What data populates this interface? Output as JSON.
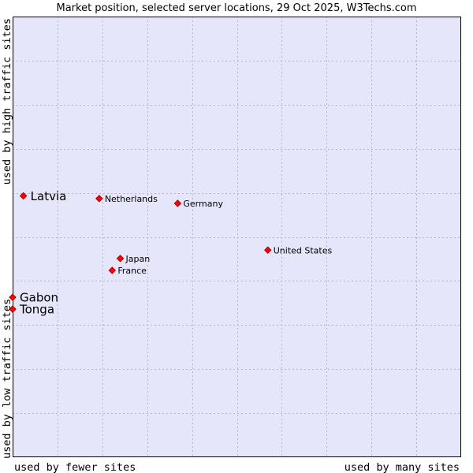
{
  "chart_data": {
    "type": "scatter",
    "title": "Market position, selected server locations, 29 Oct 2025, W3Techs.com",
    "xlabel_left": "used by fewer sites",
    "xlabel_right": "used by many sites",
    "ylabel_bottom": "used by low traffic sites",
    "ylabel_top": "used by high traffic sites",
    "xlim": [
      0,
      100
    ],
    "ylim": [
      0,
      100
    ],
    "grid": true,
    "points": [
      {
        "label": "Latvia",
        "x": 2.4,
        "y": 59.3,
        "emphasis": true
      },
      {
        "label": "Netherlands",
        "x": 19.3,
        "y": 58.7,
        "emphasis": false
      },
      {
        "label": "Germany",
        "x": 36.8,
        "y": 57.6,
        "emphasis": false
      },
      {
        "label": "United States",
        "x": 56.9,
        "y": 47.0,
        "emphasis": false
      },
      {
        "label": "Japan",
        "x": 24.0,
        "y": 45.1,
        "emphasis": false
      },
      {
        "label": "France",
        "x": 22.2,
        "y": 42.4,
        "emphasis": false
      },
      {
        "label": "Gabon",
        "x": 0.0,
        "y": 36.3,
        "emphasis": true
      },
      {
        "label": "Tonga",
        "x": 0.0,
        "y": 33.6,
        "emphasis": true
      }
    ]
  },
  "colors": {
    "plot_background": "#e6e6fa",
    "grid": "#b4b4c8",
    "marker": "#ff0000",
    "marker_outline": "#990000"
  }
}
